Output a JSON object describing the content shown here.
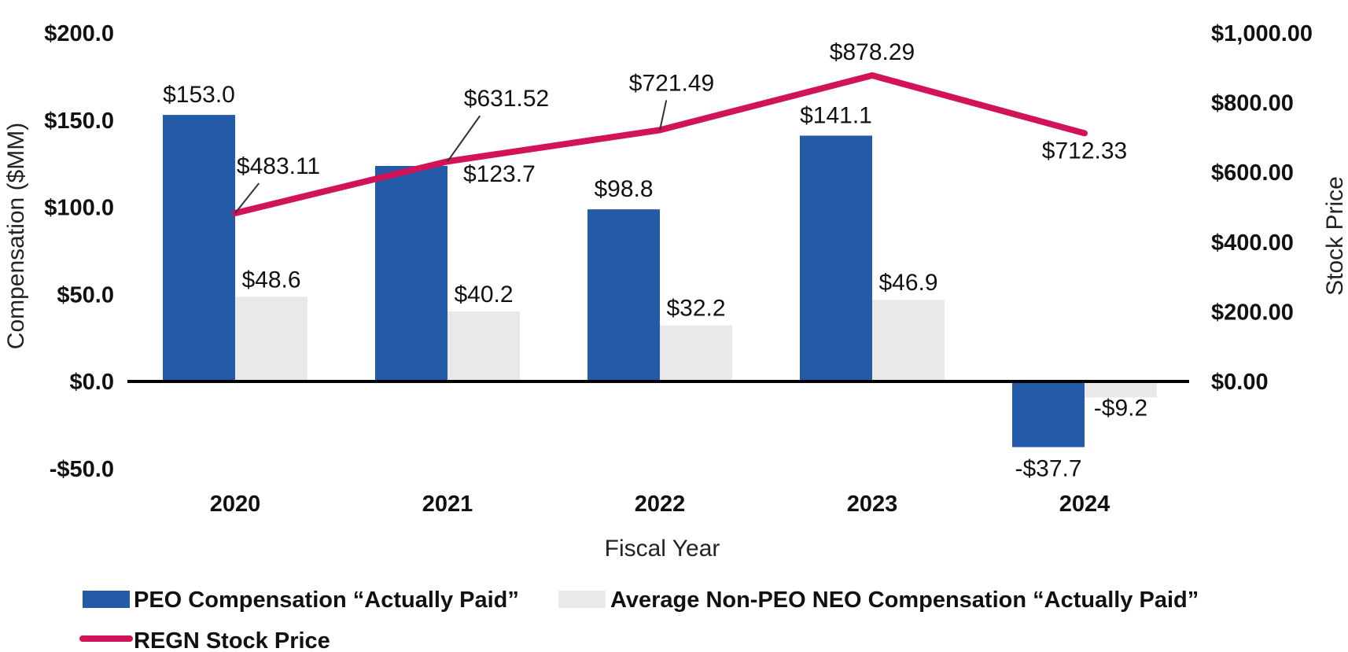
{
  "chart_data": {
    "type": "bar+line",
    "categories": [
      "2020",
      "2021",
      "2022",
      "2023",
      "2024"
    ],
    "series": [
      {
        "name": "PEO Compensation “Actually Paid”",
        "kind": "bar",
        "axis": "left",
        "color": "#235BA9",
        "values": [
          153.0,
          123.7,
          98.8,
          141.1,
          -37.7
        ],
        "labels": [
          "$153.0",
          "$123.7",
          "$98.8",
          "$141.1",
          "-$37.7"
        ]
      },
      {
        "name": "Average Non-PEO NEO Compensation “Actually Paid”",
        "kind": "bar",
        "axis": "left",
        "color": "#E9E9E9",
        "values": [
          48.6,
          40.2,
          32.2,
          46.9,
          -9.2
        ],
        "labels": [
          "$48.6",
          "$40.2",
          "$32.2",
          "$46.9",
          "-$9.2"
        ]
      },
      {
        "name": "REGN Stock Price",
        "kind": "line",
        "axis": "right",
        "color": "#D1145A",
        "values": [
          483.11,
          631.52,
          721.49,
          878.29,
          712.33
        ],
        "labels": [
          "$483.11",
          "$631.52",
          "$721.49",
          "$878.29",
          "$712.33"
        ]
      }
    ],
    "xlabel": "Fiscal Year",
    "ylabel_left": "Compensation ($MM)",
    "ylabel_right": "Stock Price",
    "ylim_left": [
      -50,
      200
    ],
    "ylim_right": [
      0,
      1000
    ],
    "yticks_left": [
      200,
      150,
      100,
      50,
      0,
      -50
    ],
    "yticks_left_labels": [
      "$200.0",
      "$150.0",
      "$100.0",
      "$50.0",
      "$0.0",
      "-$50.0"
    ],
    "yticks_right": [
      1000,
      800,
      600,
      400,
      200,
      0
    ],
    "yticks_right_labels": [
      "$1,000.00",
      "$800.00",
      "$600.00",
      "$400.00",
      "$200.00",
      "$0.00"
    ],
    "grid": false,
    "legend_position": "bottom"
  }
}
